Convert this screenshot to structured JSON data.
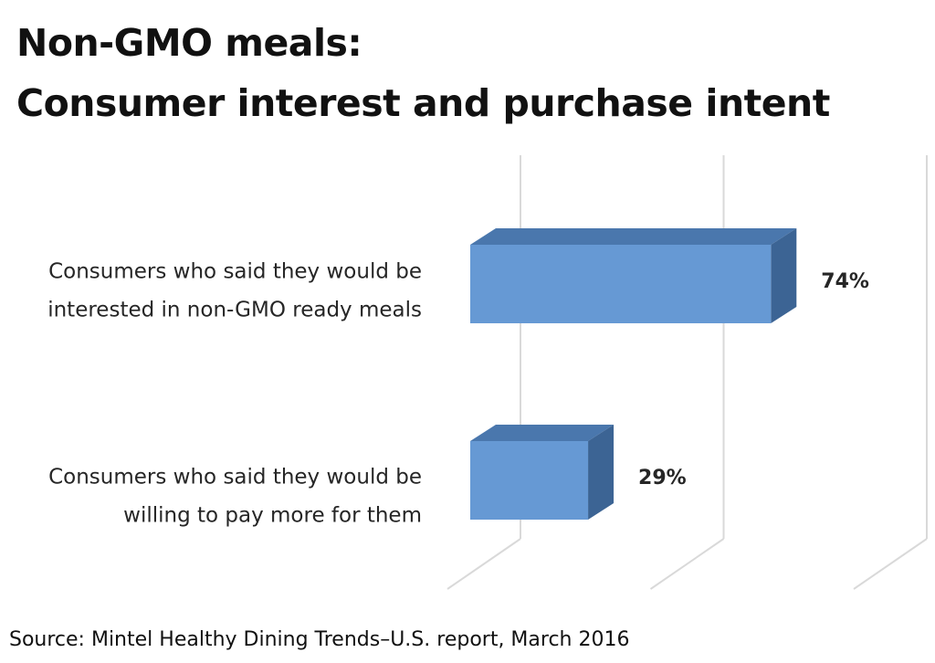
{
  "title_lines": [
    "Non-GMO meals:",
    "Consumer interest and purchase intent"
  ],
  "source": "Source: Mintel Healthy Dining Trends–U.S. report, March 2016",
  "colors": {
    "bar_front": "#6699d4",
    "bar_top": "#4a77ad",
    "bar_side": "#3c6494",
    "gridline": "#d9d9d9",
    "label_text": "#262626"
  },
  "chart_data": {
    "type": "bar",
    "orientation": "horizontal",
    "style": "3d",
    "categories": [
      [
        "Consumers who said they would be",
        "interested in non-GMO ready meals"
      ],
      [
        "Consumers who said they would be",
        "willing to pay more for them"
      ]
    ],
    "values": [
      74,
      29
    ],
    "data_labels": [
      "74%",
      "29%"
    ],
    "xlim": [
      0,
      100
    ],
    "grid": true,
    "legend": "none"
  }
}
